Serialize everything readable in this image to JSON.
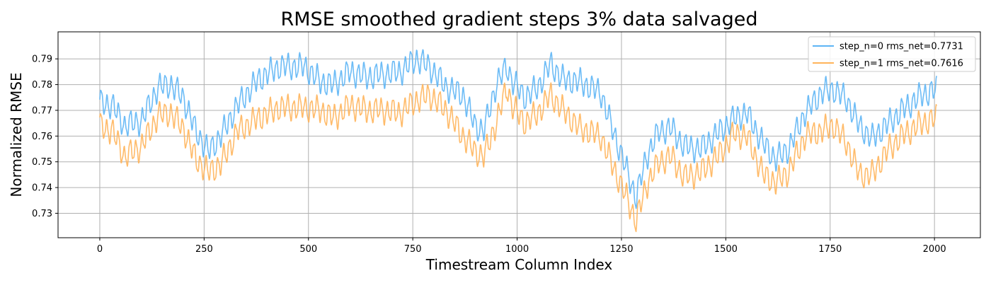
{
  "chart_data": {
    "type": "line",
    "title": "RMSE smoothed gradient steps 3% data salvaged",
    "xlabel": "Timestream Column Index",
    "ylabel": "Normalized RMSE",
    "xlim": [
      -100,
      2110
    ],
    "ylim": [
      0.7205,
      0.8005
    ],
    "xticks": [
      0,
      250,
      500,
      750,
      1000,
      1250,
      1500,
      1750,
      2000
    ],
    "xtick_labels": [
      "0",
      "250",
      "500",
      "750",
      "1000",
      "1250",
      "1500",
      "1750",
      "2000"
    ],
    "yticks": [
      0.73,
      0.74,
      0.75,
      0.76,
      0.77,
      0.78,
      0.79
    ],
    "ytick_labels": [
      "0.73",
      "0.74",
      "0.75",
      "0.76",
      "0.77",
      "0.78",
      "0.79"
    ],
    "grid": true,
    "legend_position": "top-right",
    "x_range": [
      0,
      2005
    ],
    "oscillation": {
      "period": 14,
      "amplitude": 0.004
    },
    "series": [
      {
        "name": "step_n=0 rms_net=0.7731",
        "color": "#5db5f5",
        "envelope": {
          "x": [
            0,
            30,
            60,
            100,
            140,
            170,
            200,
            230,
            260,
            290,
            330,
            380,
            430,
            490,
            530,
            560,
            600,
            640,
            680,
            720,
            760,
            790,
            830,
            870,
            900,
            920,
            950,
            975,
            990,
            1020,
            1050,
            1080,
            1110,
            1150,
            1200,
            1230,
            1260,
            1285,
            1310,
            1340,
            1370,
            1400,
            1440,
            1480,
            1520,
            1550,
            1590,
            1620,
            1650,
            1690,
            1730,
            1760,
            1790,
            1820,
            1850,
            1890,
            1930,
            1970,
            2005
          ],
          "y": [
            0.773,
            0.772,
            0.764,
            0.766,
            0.779,
            0.78,
            0.775,
            0.762,
            0.754,
            0.76,
            0.772,
            0.782,
            0.787,
            0.787,
            0.781,
            0.78,
            0.785,
            0.783,
            0.784,
            0.785,
            0.79,
            0.787,
            0.779,
            0.776,
            0.764,
            0.762,
            0.78,
            0.787,
            0.781,
            0.775,
            0.779,
            0.788,
            0.782,
            0.781,
            0.777,
            0.762,
            0.748,
            0.736,
            0.752,
            0.762,
            0.763,
            0.756,
            0.755,
            0.761,
            0.767,
            0.769,
            0.757,
            0.751,
            0.755,
            0.769,
            0.777,
            0.778,
            0.774,
            0.764,
            0.759,
            0.765,
            0.771,
            0.776,
            0.778
          ]
        }
      },
      {
        "name": "step_n=1 rms_net=0.7616",
        "color": "#ffb45a",
        "envelope": {
          "x": [
            0,
            30,
            60,
            100,
            140,
            170,
            200,
            230,
            260,
            290,
            330,
            380,
            430,
            490,
            530,
            560,
            600,
            640,
            680,
            720,
            760,
            790,
            830,
            870,
            900,
            920,
            950,
            975,
            990,
            1020,
            1050,
            1080,
            1110,
            1150,
            1200,
            1230,
            1260,
            1285,
            1310,
            1340,
            1370,
            1400,
            1440,
            1480,
            1520,
            1550,
            1590,
            1620,
            1650,
            1690,
            1730,
            1760,
            1790,
            1820,
            1850,
            1890,
            1930,
            1970,
            2005
          ],
          "y": [
            0.764,
            0.762,
            0.752,
            0.756,
            0.768,
            0.769,
            0.763,
            0.751,
            0.746,
            0.749,
            0.762,
            0.767,
            0.771,
            0.771,
            0.77,
            0.767,
            0.772,
            0.77,
            0.77,
            0.769,
            0.774,
            0.776,
            0.77,
            0.76,
            0.754,
            0.752,
            0.765,
            0.779,
            0.771,
            0.765,
            0.769,
            0.776,
            0.77,
            0.763,
            0.76,
            0.748,
            0.737,
            0.727,
            0.741,
            0.75,
            0.752,
            0.744,
            0.746,
            0.752,
            0.761,
            0.76,
            0.745,
            0.742,
            0.746,
            0.76,
            0.762,
            0.764,
            0.757,
            0.745,
            0.745,
            0.755,
            0.761,
            0.765,
            0.767
          ]
        }
      }
    ]
  }
}
